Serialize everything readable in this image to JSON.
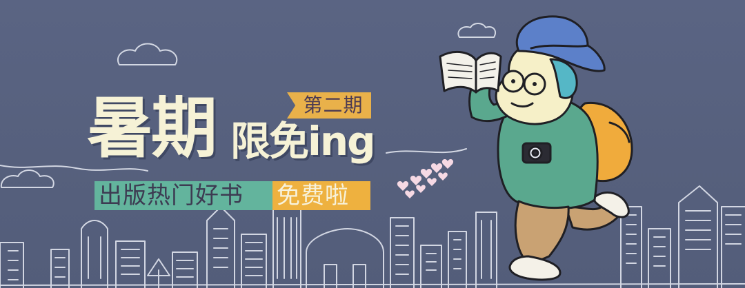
{
  "banner": {
    "badge": "第二期",
    "headline_main": "暑期",
    "headline_sub": "限免ing",
    "ribbon_left": "出版热门好书",
    "ribbon_right": "免费啦"
  },
  "colors": {
    "background": "#58627f",
    "badge": "#e9b14a",
    "ribbon_left": "#63b49d",
    "ribbon_right": "#eeb13f",
    "headline": "#f6f2d6"
  },
  "illustration": {
    "character": "traveler reading a book",
    "hat": "blue-hat-icon",
    "props": [
      "open-book-icon",
      "camera-icon",
      "backpack-icon"
    ],
    "decor": [
      "cloud-icon",
      "heart-icon",
      "city-skyline-sketch"
    ]
  }
}
